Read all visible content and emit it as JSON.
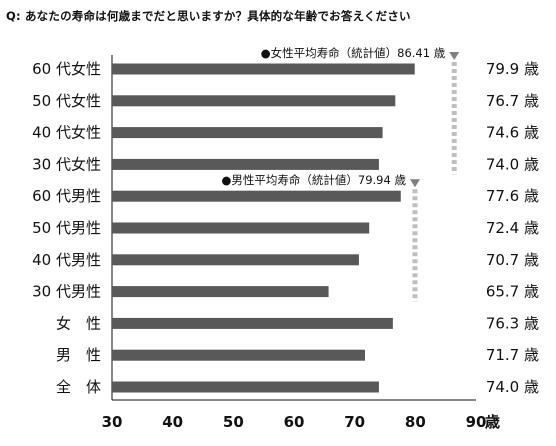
{
  "question": "Q: あなたの寿命は何歳までだと思いますか？具体的な年齢でお答えください",
  "chart_data": {
    "type": "bar",
    "orientation": "horizontal",
    "categories": [
      "60 代女性",
      "50 代女性",
      "40 代女性",
      "30 代女性",
      "60 代男性",
      "50 代男性",
      "40 代男性",
      "30 代男性",
      "女　性",
      "男　性",
      "全　体"
    ],
    "values": [
      79.9,
      76.7,
      74.6,
      74.0,
      77.6,
      72.4,
      70.7,
      65.7,
      76.3,
      71.7,
      74.0
    ],
    "value_labels": [
      "79.9 歳",
      "76.7 歳",
      "74.6 歳",
      "74.0 歳",
      "77.6 歳",
      "72.4 歳",
      "70.7 歳",
      "65.7 歳",
      "76.3 歳",
      "71.7 歳",
      "74.0 歳"
    ],
    "xlim": [
      30,
      90
    ],
    "xticks": [
      "30",
      "40",
      "50",
      "60",
      "70",
      "80",
      "90"
    ],
    "x_unit": "歳",
    "bar_color": "#595959",
    "grid": false,
    "reference_lines": [
      {
        "label": "●女性平均寿命（統計値）86.41 歳",
        "value": 86.41,
        "applies_to": [
          0,
          3
        ],
        "color": "#bfbfbf"
      },
      {
        "label": "●男性平均寿命（統計値）79.94 歳",
        "value": 79.94,
        "applies_to": [
          4,
          7
        ],
        "color": "#bfbfbf"
      }
    ]
  }
}
